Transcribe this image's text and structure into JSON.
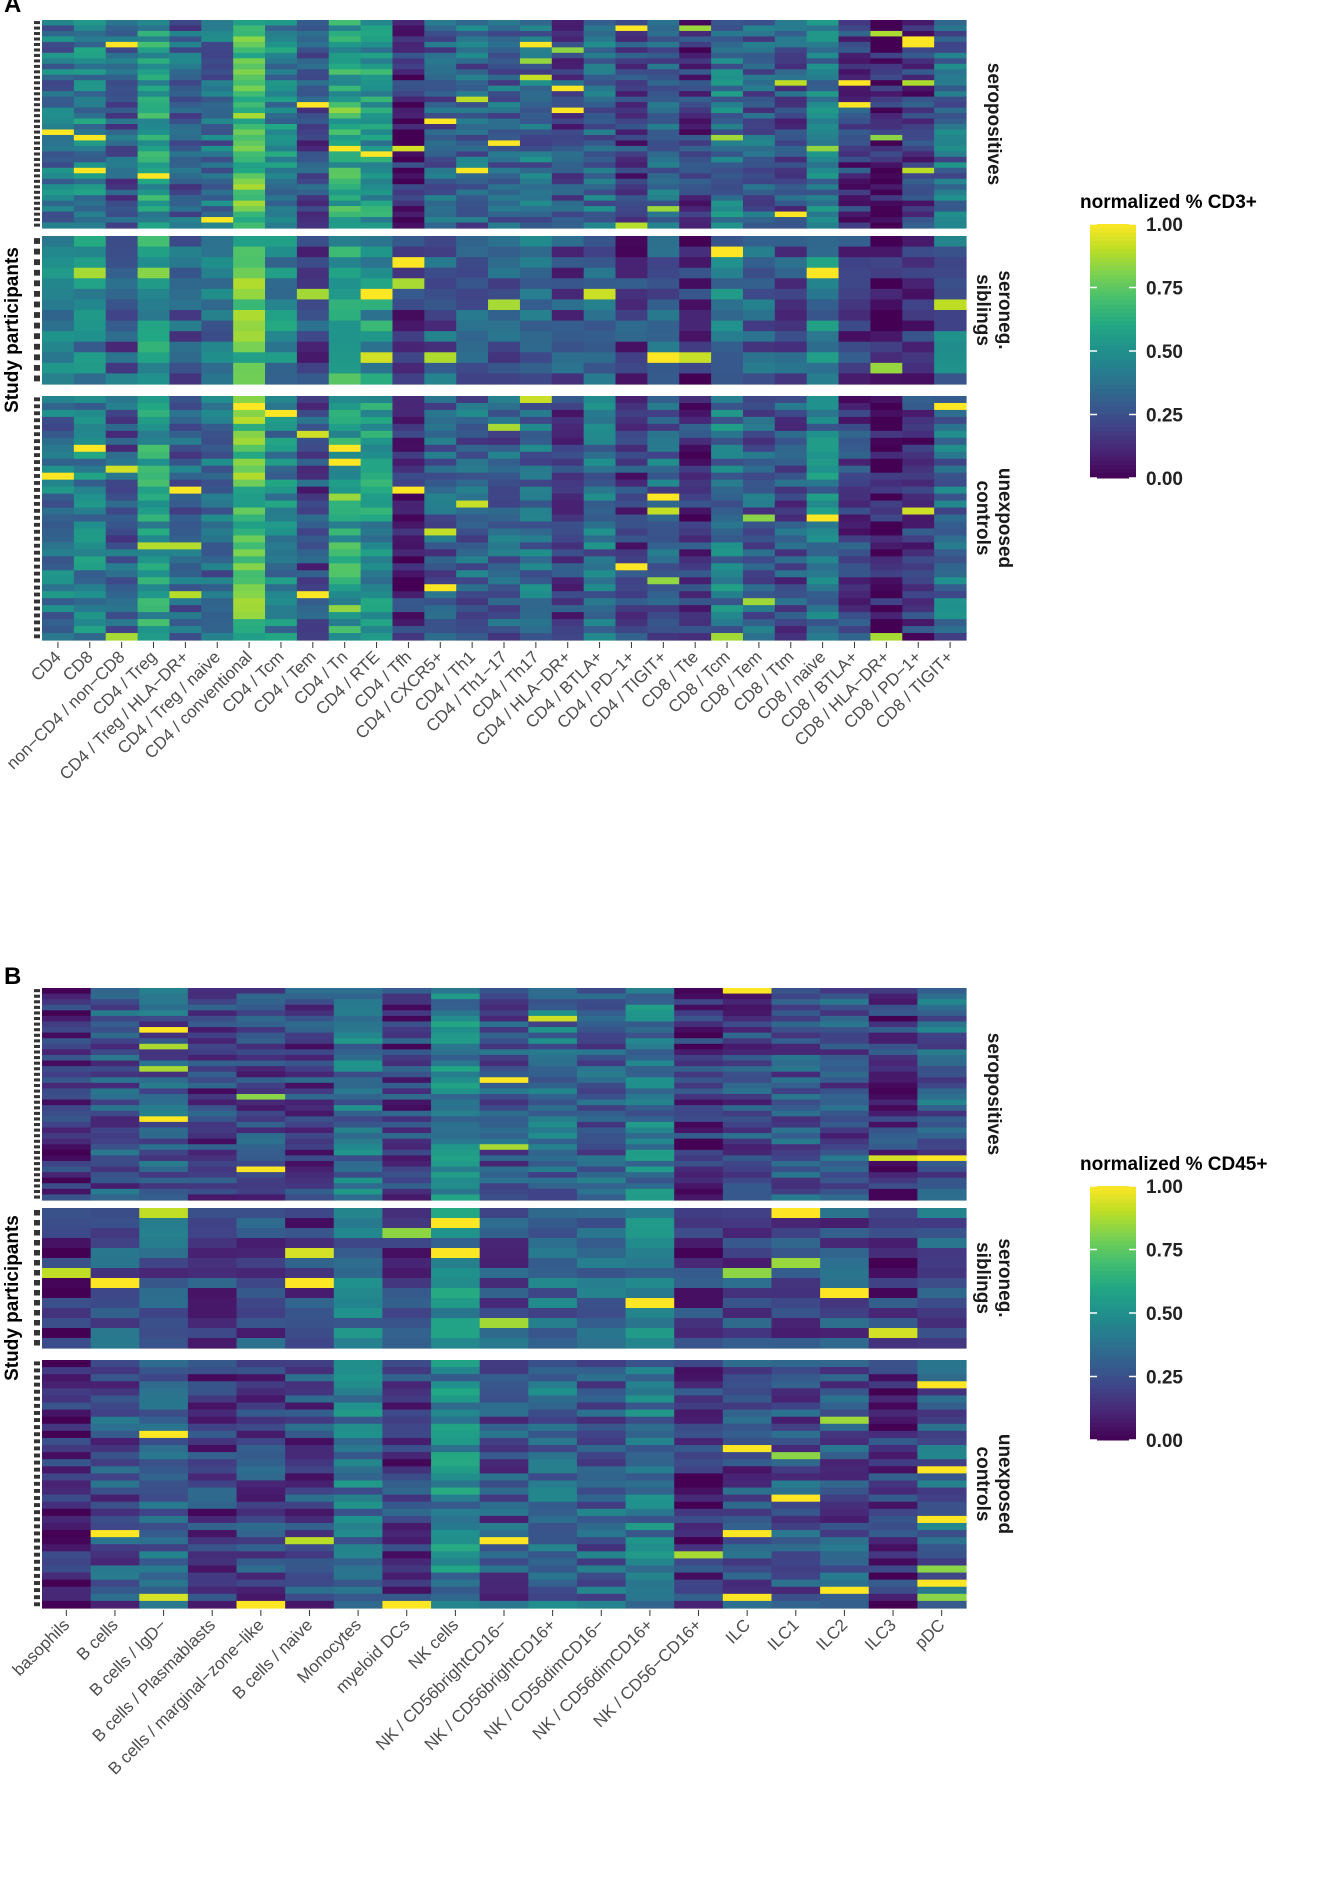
{
  "chart_data": [
    {
      "panel": "A",
      "type": "heatmap",
      "ylabel": "Study participants",
      "columns": [
        "CD4",
        "CD8",
        "non−CD4 / non−CD8",
        "CD4 / Treg",
        "CD4 / Treg / HLA−DR+",
        "CD4 / Treg / naive",
        "CD4 / conventional",
        "CD4 / Tcm",
        "CD4 / Tem",
        "CD4 / Tn",
        "CD4 / RTE",
        "CD4 / Tfh",
        "CD4 / CXCR5+",
        "CD4 / Th1",
        "CD4 / Th1−17",
        "CD4 / Th17",
        "CD4 / HLA−DR+",
        "CD4 / BTLA+",
        "CD4 / PD−1+",
        "CD4 / TIGIT+",
        "CD8 / Tte",
        "CD8 / Tcm",
        "CD8 / Tem",
        "CD8 / Ttm",
        "CD8 / naive",
        "CD8 / BTLA+",
        "CD8 / HLA−DR+",
        "CD8 / PD−1+",
        "CD8 / TIGIT+"
      ],
      "groups": [
        {
          "label": [
            "seropositives"
          ],
          "n_rows": 38
        },
        {
          "label": [
            "seroneg.",
            "siblings"
          ],
          "n_rows": 14
        },
        {
          "label": [
            "unexposed",
            "controls"
          ],
          "n_rows": 35
        }
      ],
      "column_means": [
        0.38,
        0.45,
        0.28,
        0.55,
        0.3,
        0.35,
        0.72,
        0.45,
        0.22,
        0.58,
        0.52,
        0.12,
        0.28,
        0.32,
        0.3,
        0.35,
        0.22,
        0.35,
        0.18,
        0.32,
        0.15,
        0.4,
        0.3,
        0.25,
        0.42,
        0.18,
        0.08,
        0.15,
        0.35
      ],
      "legend": {
        "title": "normalized % CD3+",
        "range": [
          0,
          1
        ],
        "ticks": [
          "1.00",
          "0.75",
          "0.50",
          "0.25",
          "0.00"
        ]
      }
    },
    {
      "panel": "B",
      "type": "heatmap",
      "ylabel": "Study participants",
      "columns": [
        "basophils",
        "B cells",
        "B cells / IgD−",
        "B cells / Plasmablasts",
        "B cells / marginal−zone−like",
        "B cells / naive",
        "Monocytes",
        "myeloid DCs",
        "NK cells",
        "NK / CD56brightCD16−",
        "NK / CD56brightCD16+",
        "NK / CD56dimCD16−",
        "NK / CD56dimCD16+",
        "NK / CD56−CD16+",
        "ILC",
        "ILC1",
        "ILC2",
        "ILC3",
        "pDC"
      ],
      "groups": [
        {
          "label": [
            "seropositives"
          ],
          "n_rows": 38
        },
        {
          "label": [
            "seroneg.",
            "siblings"
          ],
          "n_rows": 14
        },
        {
          "label": [
            "unexposed",
            "controls"
          ],
          "n_rows": 35
        }
      ],
      "column_means": [
        0.12,
        0.25,
        0.28,
        0.18,
        0.22,
        0.2,
        0.38,
        0.18,
        0.45,
        0.25,
        0.35,
        0.3,
        0.4,
        0.15,
        0.22,
        0.25,
        0.25,
        0.15,
        0.3
      ],
      "legend": {
        "title": "normalized % CD45+",
        "range": [
          0,
          1
        ],
        "ticks": [
          "1.00",
          "0.75",
          "0.50",
          "0.25",
          "0.00"
        ]
      }
    }
  ]
}
